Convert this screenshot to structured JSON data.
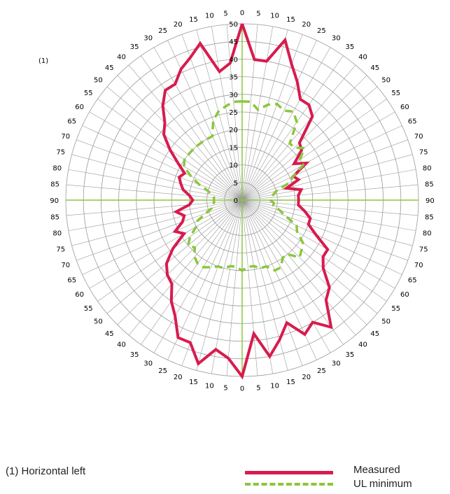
{
  "corner_label": "(1)",
  "footnote": "(1)  Horizontal left",
  "legend": {
    "measured": "Measured",
    "ul_minimum": "UL minimum"
  },
  "colors": {
    "measured": "#d81b4e",
    "ul_minimum": "#8cc63f",
    "grid": "#9a9a9a",
    "axis": "#8cc63f"
  },
  "chart_data": {
    "type": "polar-line",
    "r_range": [
      0,
      50
    ],
    "r_ticks": [
      "0",
      "5",
      "10",
      "15",
      "20",
      "25",
      "30",
      "35",
      "40",
      "45",
      "50"
    ],
    "angle_step_deg": 5,
    "angle_tick_labels": [
      "0",
      "5",
      "10",
      "15",
      "20",
      "25",
      "30",
      "35",
      "40",
      "45",
      "50",
      "55",
      "60",
      "65",
      "70",
      "75",
      "80",
      "85",
      "90",
      "85",
      "80",
      "75",
      "70",
      "65",
      "60",
      "55",
      "50",
      "45",
      "40",
      "35",
      "30",
      "25",
      "20",
      "15",
      "10",
      "5",
      "0",
      "5",
      "10",
      "15",
      "20",
      "25",
      "30",
      "35",
      "40",
      "45",
      "50",
      "55",
      "60",
      "65",
      "70",
      "75",
      "80",
      "85",
      "90",
      "85",
      "80",
      "75",
      "70",
      "65",
      "60",
      "55",
      "50",
      "45",
      "40",
      "35",
      "30",
      "25",
      "20",
      "15",
      "10",
      "5"
    ],
    "grid": true,
    "legend_position": "bottom-right",
    "series": [
      {
        "name": "Measured",
        "style": "solid",
        "points": [
          [
            0,
            50
          ],
          [
            5,
            40
          ],
          [
            10,
            40
          ],
          [
            15,
            47
          ],
          [
            20,
            41
          ],
          [
            25,
            37
          ],
          [
            30,
            33
          ],
          [
            35,
            33
          ],
          [
            40,
            31
          ],
          [
            45,
            23
          ],
          [
            50,
            22
          ],
          [
            55,
            18
          ],
          [
            60,
            21
          ],
          [
            65,
            16
          ],
          [
            70,
            17
          ],
          [
            75,
            13
          ],
          [
            80,
            17
          ],
          [
            85,
            16
          ],
          [
            90,
            16
          ],
          [
            95,
            16
          ],
          [
            100,
            18
          ],
          [
            105,
            20
          ],
          [
            110,
            20
          ],
          [
            115,
            23
          ],
          [
            120,
            28
          ],
          [
            125,
            28
          ],
          [
            130,
            30
          ],
          [
            135,
            35
          ],
          [
            140,
            37
          ],
          [
            145,
            44
          ],
          [
            150,
            40
          ],
          [
            155,
            42
          ],
          [
            160,
            37
          ],
          [
            165,
            41
          ],
          [
            170,
            45
          ],
          [
            175,
            38
          ],
          [
            180,
            50
          ],
          [
            185,
            45
          ],
          [
            190,
            43
          ],
          [
            195,
            48
          ],
          [
            200,
            43
          ],
          [
            205,
            43
          ],
          [
            210,
            38
          ],
          [
            215,
            35
          ],
          [
            220,
            31
          ],
          [
            225,
            30
          ],
          [
            230,
            28
          ],
          [
            235,
            24
          ],
          [
            240,
            19
          ],
          [
            245,
            21
          ],
          [
            250,
            18
          ],
          [
            255,
            17
          ],
          [
            260,
            19
          ],
          [
            265,
            15
          ],
          [
            270,
            14
          ],
          [
            275,
            15
          ],
          [
            280,
            17
          ],
          [
            285,
            18
          ],
          [
            290,
            19
          ],
          [
            295,
            18
          ],
          [
            300,
            21
          ],
          [
            305,
            25
          ],
          [
            310,
            29
          ],
          [
            315,
            31
          ],
          [
            320,
            35
          ],
          [
            325,
            38
          ],
          [
            330,
            38
          ],
          [
            335,
            41
          ],
          [
            340,
            43
          ],
          [
            345,
            46
          ],
          [
            350,
            37
          ],
          [
            355,
            39
          ],
          [
            360,
            50
          ]
        ]
      },
      {
        "name": "UL minimum",
        "style": "dashed",
        "points": [
          [
            0,
            28
          ],
          [
            5,
            28
          ],
          [
            10,
            26
          ],
          [
            15,
            28
          ],
          [
            20,
            29
          ],
          [
            25,
            28
          ],
          [
            30,
            29
          ],
          [
            35,
            27
          ],
          [
            40,
            21
          ],
          [
            45,
            21
          ],
          [
            50,
            23
          ],
          [
            55,
            20
          ],
          [
            60,
            20
          ],
          [
            65,
            16
          ],
          [
            70,
            14
          ],
          [
            75,
            10
          ],
          [
            80,
            9
          ],
          [
            85,
            8
          ],
          [
            90,
            8
          ],
          [
            95,
            9
          ],
          [
            100,
            9
          ],
          [
            105,
            11
          ],
          [
            110,
            13
          ],
          [
            115,
            17
          ],
          [
            120,
            18
          ],
          [
            125,
            21
          ],
          [
            130,
            22
          ],
          [
            135,
            23
          ],
          [
            140,
            20
          ],
          [
            145,
            20
          ],
          [
            150,
            22
          ],
          [
            155,
            22
          ],
          [
            160,
            20
          ],
          [
            165,
            20
          ],
          [
            170,
            19
          ],
          [
            175,
            19
          ],
          [
            180,
            20
          ],
          [
            185,
            19
          ],
          [
            190,
            19
          ],
          [
            195,
            20
          ],
          [
            200,
            20
          ],
          [
            205,
            21
          ],
          [
            210,
            22
          ],
          [
            215,
            22
          ],
          [
            220,
            21
          ],
          [
            225,
            19
          ],
          [
            230,
            20
          ],
          [
            235,
            18
          ],
          [
            240,
            15
          ],
          [
            245,
            14
          ],
          [
            250,
            11
          ],
          [
            255,
            9
          ],
          [
            260,
            9
          ],
          [
            265,
            8
          ],
          [
            270,
            8
          ],
          [
            275,
            8
          ],
          [
            280,
            9
          ],
          [
            285,
            10
          ],
          [
            290,
            13
          ],
          [
            295,
            16
          ],
          [
            300,
            19
          ],
          [
            305,
            20
          ],
          [
            310,
            20
          ],
          [
            315,
            20
          ],
          [
            320,
            20
          ],
          [
            325,
            20
          ],
          [
            330,
            20
          ],
          [
            335,
            20
          ],
          [
            340,
            24
          ],
          [
            345,
            26
          ],
          [
            350,
            27
          ],
          [
            355,
            28
          ],
          [
            360,
            28
          ]
        ]
      }
    ]
  }
}
